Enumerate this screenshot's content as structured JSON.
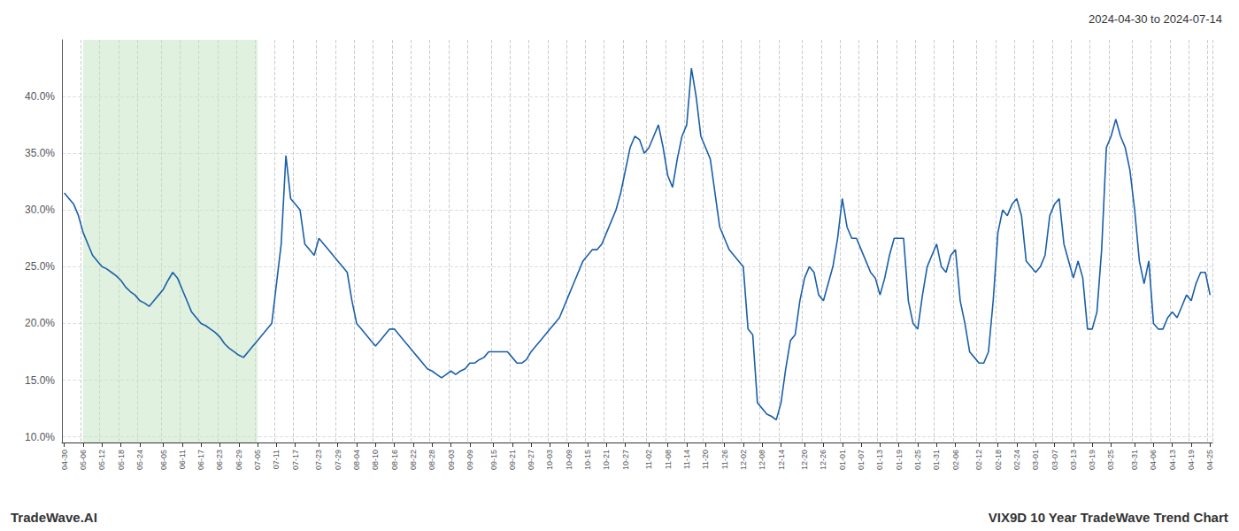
{
  "chart_data": {
    "type": "line",
    "title": "2024-04-30 to 2024-07-14",
    "annotations": [
      "TradeWave.AI",
      "VIX9D 10 Year TradeWave Trend Chart"
    ],
    "color": "#1a5fa8",
    "grid": true,
    "ylim": [
      9.5,
      45.0
    ],
    "yticks": [
      {
        "value": 10.0,
        "label": "10.0%"
      },
      {
        "value": 15.0,
        "label": "15.0%"
      },
      {
        "value": 20.0,
        "label": "20.0%"
      },
      {
        "value": 25.0,
        "label": "25.0%"
      },
      {
        "value": 30.0,
        "label": "30.0%"
      },
      {
        "value": 35.0,
        "label": "35.0%"
      },
      {
        "value": 40.0,
        "label": "40.0%"
      }
    ],
    "shaded": {
      "from": "05-06",
      "to": "07-05",
      "color": "#c8e6c4"
    },
    "categories": [
      "04-30",
      null,
      null,
      null,
      "05-06",
      null,
      null,
      null,
      "05-12",
      null,
      null,
      null,
      "05-18",
      null,
      null,
      null,
      "05-24",
      null,
      null,
      null,
      null,
      "06-05",
      null,
      null,
      null,
      "06-11",
      null,
      null,
      null,
      "06-17",
      null,
      null,
      null,
      "06-23",
      null,
      null,
      null,
      "06-29",
      null,
      null,
      null,
      "07-05",
      null,
      null,
      null,
      "07-11",
      null,
      null,
      null,
      "07-17",
      null,
      null,
      null,
      null,
      "07-23",
      null,
      null,
      null,
      "07-29",
      null,
      null,
      null,
      "08-04",
      null,
      null,
      null,
      "08-10",
      null,
      null,
      null,
      "08-16",
      null,
      null,
      null,
      "08-22",
      null,
      null,
      null,
      "08-28",
      null,
      null,
      null,
      "09-03",
      null,
      null,
      null,
      "09-09",
      null,
      null,
      null,
      null,
      "09-15",
      null,
      null,
      null,
      "09-21",
      null,
      null,
      null,
      "09-27",
      null,
      null,
      null,
      "10-03",
      null,
      null,
      null,
      "10-09",
      null,
      null,
      null,
      "10-15",
      null,
      null,
      null,
      "10-21",
      null,
      null,
      null,
      "10-27",
      null,
      null,
      null,
      null,
      "11-02",
      null,
      null,
      null,
      "11-08",
      null,
      null,
      null,
      "11-14",
      null,
      null,
      null,
      "11-20",
      null,
      null,
      null,
      "11-26",
      null,
      null,
      null,
      "12-02",
      null,
      null,
      null,
      "12-08",
      null,
      null,
      null,
      "12-14",
      null,
      null,
      null,
      null,
      "12-20",
      null,
      null,
      null,
      "12-26",
      null,
      null,
      null,
      "01-01",
      null,
      null,
      null,
      "01-07",
      null,
      null,
      null,
      "01-13",
      null,
      null,
      null,
      "01-19",
      null,
      null,
      null,
      "01-25",
      null,
      null,
      null,
      "01-31",
      null,
      null,
      null,
      "02-06",
      null,
      null,
      null,
      null,
      "02-12",
      null,
      null,
      null,
      "02-18",
      null,
      null,
      null,
      "02-24",
      null,
      null,
      null,
      "03-01",
      null,
      null,
      null,
      "03-07",
      null,
      null,
      null,
      "03-13",
      null,
      null,
      null,
      "03-19",
      null,
      null,
      null,
      "03-25",
      null,
      null,
      null,
      null,
      "03-31",
      null,
      null,
      null,
      "04-06",
      null,
      null,
      null,
      "04-13",
      null,
      null,
      null,
      "04-19",
      null,
      null,
      null,
      "04-25"
    ],
    "values": [
      31.5,
      31.0,
      30.5,
      29.5,
      28.0,
      27.0,
      26.0,
      25.5,
      25.0,
      24.8,
      24.5,
      24.2,
      23.8,
      23.2,
      22.8,
      22.5,
      22.0,
      21.8,
      21.5,
      22.0,
      22.5,
      23.0,
      23.8,
      24.5,
      24.0,
      23.0,
      22.0,
      21.0,
      20.5,
      20.0,
      19.8,
      19.5,
      19.2,
      18.8,
      18.2,
      17.8,
      17.5,
      17.2,
      17.0,
      17.5,
      18.0,
      18.5,
      19.0,
      19.5,
      20.0,
      23.5,
      27.0,
      34.8,
      31.0,
      30.5,
      30.0,
      27.0,
      26.5,
      26.0,
      27.5,
      27.0,
      26.5,
      26.0,
      25.5,
      25.0,
      24.5,
      22.0,
      20.0,
      19.5,
      19.0,
      18.5,
      18.0,
      18.5,
      19.0,
      19.5,
      19.5,
      19.0,
      18.5,
      18.0,
      17.5,
      17.0,
      16.5,
      16.0,
      15.8,
      15.5,
      15.2,
      15.5,
      15.8,
      15.5,
      15.8,
      16.0,
      16.5,
      16.5,
      16.8,
      17.0,
      17.5,
      17.5,
      17.5,
      17.5,
      17.5,
      17.0,
      16.5,
      16.5,
      16.8,
      17.5,
      18.0,
      18.5,
      19.0,
      19.5,
      20.0,
      20.5,
      21.5,
      22.5,
      23.5,
      24.5,
      25.5,
      26.0,
      26.5,
      26.5,
      27.0,
      28.0,
      29.0,
      30.0,
      31.5,
      33.5,
      35.5,
      36.5,
      36.2,
      35.0,
      35.5,
      36.5,
      37.5,
      35.5,
      33.0,
      32.0,
      34.5,
      36.5,
      37.5,
      42.5,
      40.0,
      36.5,
      35.5,
      34.5,
      31.5,
      28.5,
      27.5,
      26.5,
      26.0,
      25.5,
      25.0,
      19.5,
      19.0,
      13.0,
      12.5,
      12.0,
      11.8,
      11.5,
      13.0,
      16.0,
      18.5,
      19.0,
      22.0,
      24.0,
      25.0,
      24.5,
      22.5,
      22.0,
      23.5,
      25.0,
      27.5,
      31.0,
      28.5,
      27.5,
      27.5,
      26.5,
      25.5,
      24.5,
      24.0,
      22.5,
      24.0,
      26.0,
      27.5,
      27.5,
      27.5,
      22.0,
      20.0,
      19.5,
      22.5,
      25.0,
      26.0,
      27.0,
      25.0,
      24.5,
      26.0,
      26.5,
      22.0,
      20.0,
      17.5,
      17.0,
      16.5,
      16.5,
      17.5,
      22.0,
      28.0,
      30.0,
      29.5,
      30.5,
      31.0,
      29.5,
      25.5,
      25.0,
      24.5,
      25.0,
      26.0,
      29.5,
      30.5,
      31.0,
      27.0,
      25.5,
      24.0,
      25.5,
      24.0,
      19.5,
      19.5,
      21.0,
      26.5,
      35.5,
      36.5,
      38.0,
      36.5,
      35.5,
      33.5,
      30.0,
      25.5,
      23.5,
      25.5,
      20.0,
      19.5,
      19.5,
      20.5,
      21.0,
      20.5,
      21.5,
      22.5,
      22.0,
      23.5,
      24.5,
      24.5,
      22.5
    ]
  }
}
